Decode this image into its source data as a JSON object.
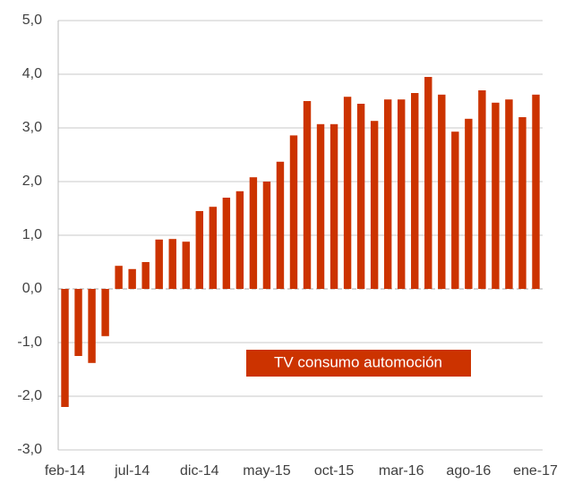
{
  "chart_data": {
    "type": "bar",
    "categories": [
      "feb-14",
      null,
      null,
      null,
      null,
      "jul-14",
      null,
      null,
      null,
      null,
      "dic-14",
      null,
      null,
      null,
      null,
      "may-15",
      null,
      null,
      null,
      null,
      "oct-15",
      null,
      null,
      null,
      null,
      "mar-16",
      null,
      null,
      null,
      null,
      "ago-16",
      null,
      null,
      null,
      null,
      "ene-17"
    ],
    "series": [
      {
        "name": "TV consumo automoción",
        "color": "#cc3300",
        "values": [
          -2.2,
          -1.25,
          -1.38,
          -0.88,
          0.43,
          0.37,
          0.5,
          0.92,
          0.93,
          0.88,
          1.45,
          1.53,
          1.7,
          1.82,
          2.08,
          2.0,
          2.37,
          2.86,
          3.5,
          3.07,
          3.07,
          3.58,
          3.45,
          3.13,
          3.53,
          3.53,
          3.65,
          3.95,
          3.62,
          2.93,
          3.17,
          3.7,
          3.47,
          3.53,
          3.2,
          3.62
        ]
      }
    ],
    "ylim": [
      -3,
      5
    ],
    "yticks": [
      {
        "value": -3,
        "label": "-3,0"
      },
      {
        "value": -2,
        "label": "-2,0"
      },
      {
        "value": -1,
        "label": "-1,0"
      },
      {
        "value": 0,
        "label": "0,0"
      },
      {
        "value": 1,
        "label": "1,0"
      },
      {
        "value": 2,
        "label": "2,0"
      },
      {
        "value": 3,
        "label": "3,0"
      },
      {
        "value": 4,
        "label": "4,0"
      },
      {
        "value": 5,
        "label": "5,0"
      }
    ],
    "grid": true
  }
}
